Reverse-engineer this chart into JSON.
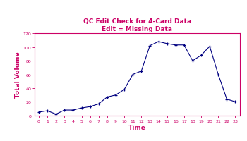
{
  "title_line1": "QC Edit Check for 4-Card Data",
  "title_line2": "Edit = Missing Data",
  "xlabel": "Time",
  "ylabel": "Total Volume",
  "title_color": "#CC0066",
  "axis_label_color": "#CC0066",
  "tick_color": "#CC0066",
  "spine_color": "#CC0066",
  "line_color": "#000080",
  "marker_color": "#000080",
  "x": [
    0,
    1,
    2,
    3,
    4,
    5,
    6,
    7,
    8,
    9,
    10,
    11,
    12,
    13,
    14,
    15,
    16,
    17,
    18,
    19,
    20,
    21,
    22,
    23
  ],
  "y": [
    5,
    7,
    2,
    8,
    8,
    11,
    13,
    17,
    27,
    30,
    38,
    60,
    65,
    102,
    108,
    105,
    103,
    103,
    80,
    88,
    101,
    60,
    24,
    20
  ],
  "ylim": [
    0,
    120
  ],
  "xlim": [
    -0.5,
    23.5
  ],
  "yticks": [
    0,
    20,
    40,
    60,
    80,
    100,
    120
  ],
  "xticks": [
    0,
    1,
    2,
    3,
    4,
    5,
    6,
    7,
    8,
    9,
    10,
    11,
    12,
    13,
    14,
    15,
    16,
    17,
    18,
    19,
    20,
    21,
    22,
    23
  ],
  "figsize": [
    3.5,
    2.01
  ],
  "dpi": 100
}
